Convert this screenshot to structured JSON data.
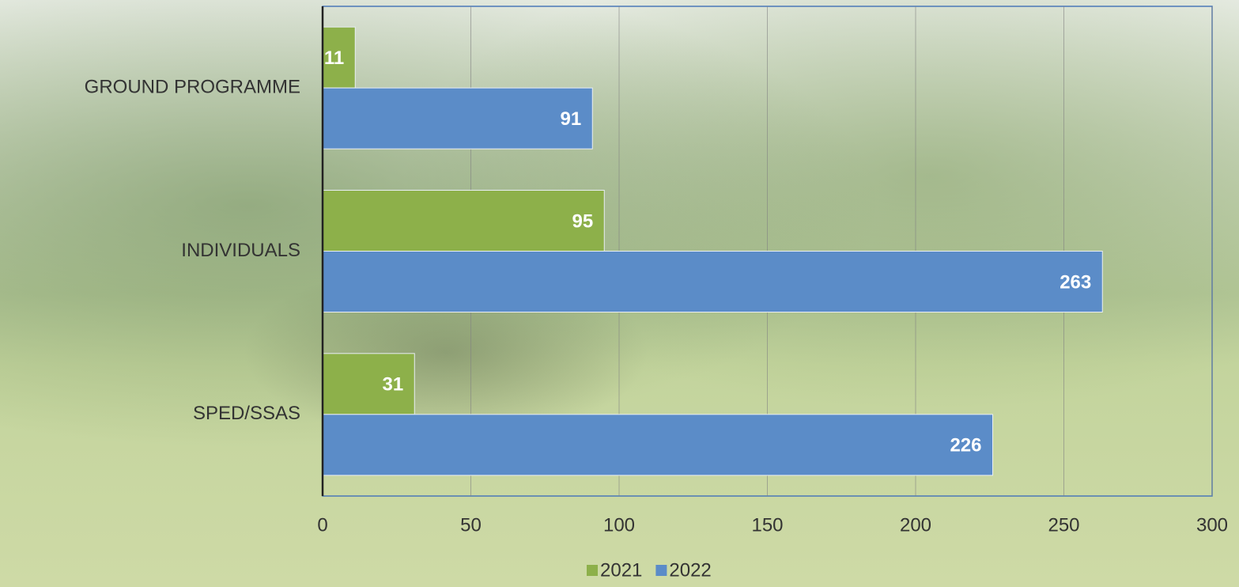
{
  "chart_data": {
    "type": "bar",
    "orientation": "horizontal",
    "categories": [
      "GROUND PROGRAMME",
      "INDIVIDUALS",
      "SPED/SSAS"
    ],
    "series": [
      {
        "name": "2021",
        "color": "#8db04a",
        "values": [
          11,
          95,
          31
        ]
      },
      {
        "name": "2022",
        "color": "#5b8cc8",
        "values": [
          91,
          263,
          226
        ]
      }
    ],
    "xlim": [
      0,
      300
    ],
    "xticks": [
      0,
      50,
      100,
      150,
      200,
      250,
      300
    ],
    "grid": true,
    "legend": "bottom"
  }
}
